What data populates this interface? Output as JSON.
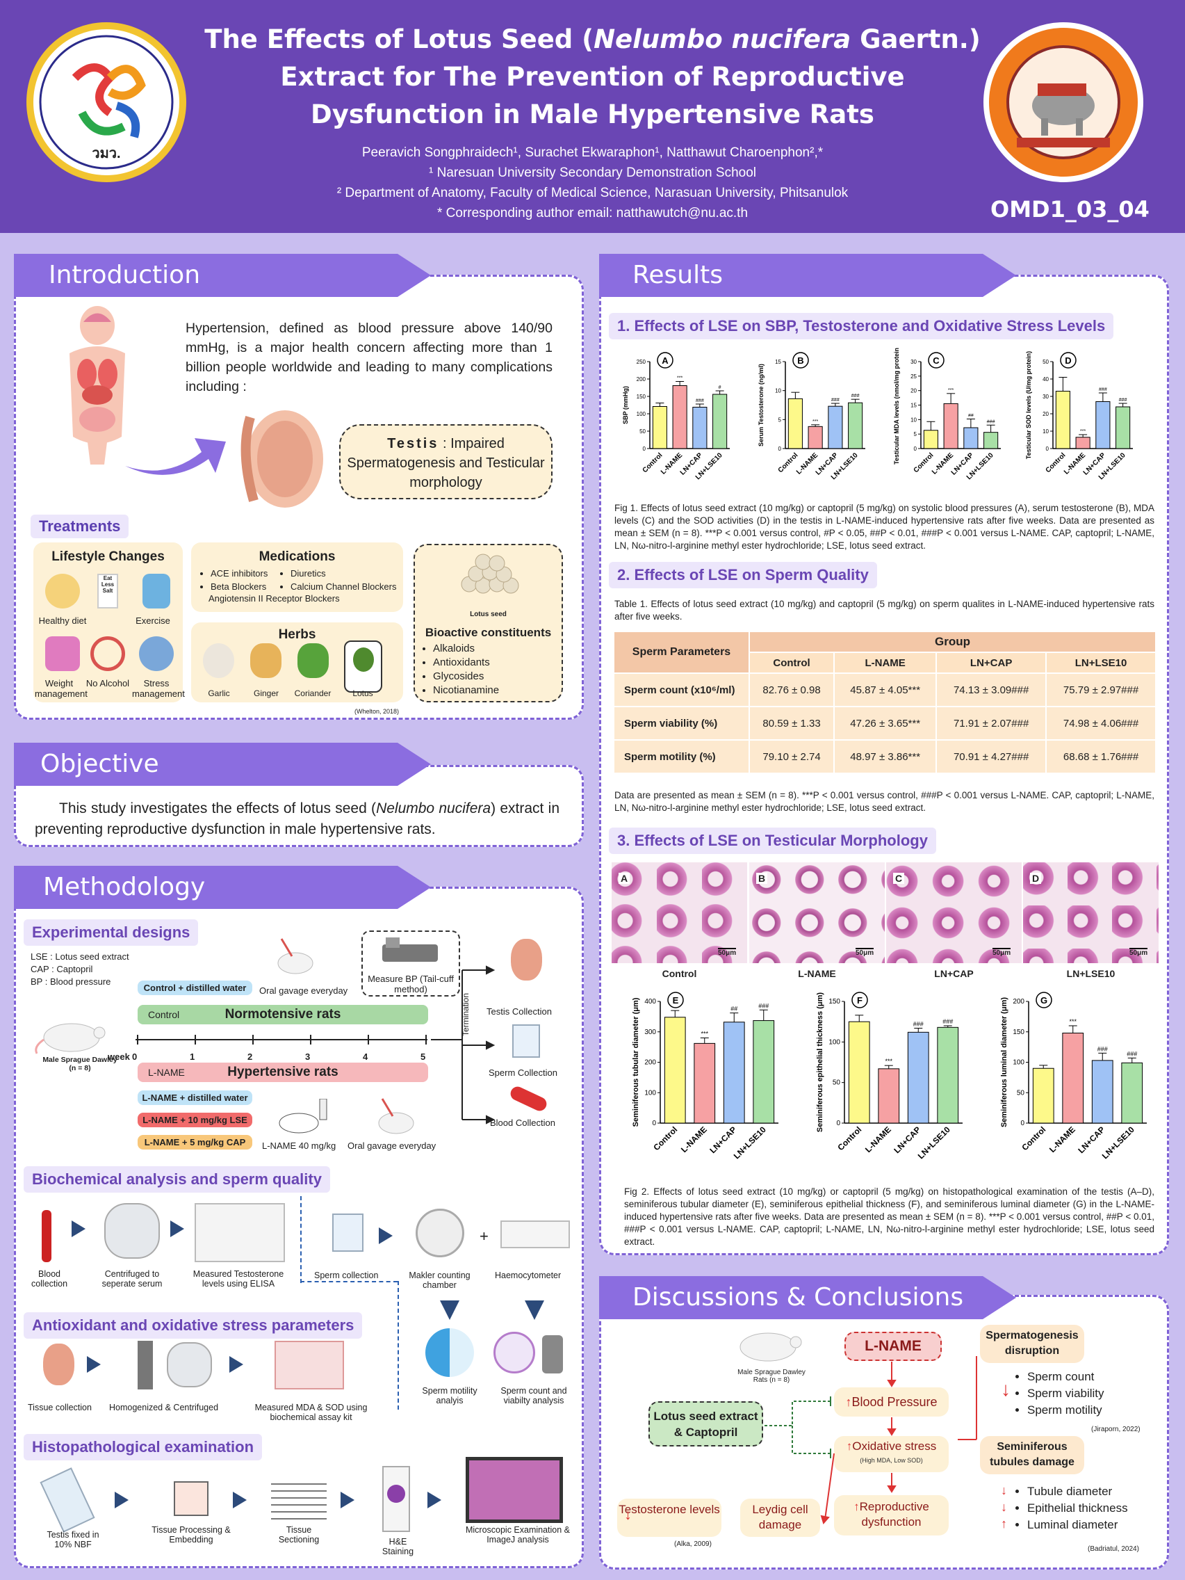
{
  "header": {
    "title_part1": "The Effects of Lotus Seed (",
    "title_italic": "Nelumbo nucifera",
    "title_part2": " Gaertn.)",
    "title_line2": "Extract for The Prevention of Reproductive",
    "title_line3": "Dysfunction in Male Hypertensive Rats",
    "authors": "Peeravich Songphraidech¹, Surachet Ekwaraphon¹, Natthawut Charoenphon²,*",
    "aff1": "¹ Naresuan University Secondary Demonstration School",
    "aff2": "² Department of Anatomy, Faculty of Medical Science, Narasuan University, Phitsanulok",
    "email": "* Corresponding author email: natthawutch@nu.ac.th",
    "code": "OMD1_03_04",
    "left_logo_text": "วมว."
  },
  "intro": {
    "heading": "Introduction",
    "text": "Hypertension, defined as blood pressure above 140/90 mmHg, is a major health concern affecting more than 1 billion people worldwide and leading to many complications including :",
    "testis_bold": "Testis",
    "testis_rest": " : Impaired Spermatogenesis and Testicular morphology",
    "treatments": "Treatments",
    "lifestyle": "Lifestyle Changes",
    "ls_items": [
      "Healthy diet",
      "Exercise",
      "Weight management",
      "No Alcohol",
      "Stress management"
    ],
    "eat_less_salt": "Eat Less Salt",
    "medications": "Medications",
    "med_items": [
      "ACE inhibitors",
      "Diuretics",
      "Beta Blockers",
      "Calcium Channel Blockers",
      "Angiotensin II Receptor Blockers"
    ],
    "herbs": "Herbs",
    "herb_items": [
      "Garlic",
      "Ginger",
      "Coriander",
      "Lotus"
    ],
    "citation": "(Whelton, 2018)",
    "lotus_seed": "Lotus seed",
    "bioactive": "Bioactive constituents",
    "bio_items": [
      "Alkaloids",
      "Antioxidants",
      "Glycosides",
      "Nicotianamine"
    ]
  },
  "objective": {
    "heading": "Objective",
    "text1": "This study investigates the effects of lotus seed (",
    "italic": "Nelumbo nucifera",
    "text2": ") extract in preventing reproductive dysfunction in male hypertensive rats."
  },
  "methods": {
    "heading": "Methodology",
    "exp": "Experimental designs",
    "abbr": [
      "LSE : Lotus seed extract",
      "CAP : Captopril",
      "BP : Blood pressure"
    ],
    "ctrl_water": "Control + distilled water",
    "oral1": "Oral gavage everyday",
    "measure_bp": "Measure BP (Tail-cuff method)",
    "control": "Control",
    "normo": "Normotensive rats",
    "rat": "Male Sprague Dawley (n = 8)",
    "week": "week",
    "weeks": [
      "0",
      "1",
      "2",
      "3",
      "4",
      "5"
    ],
    "lname": "L-NAME",
    "hyper": "Hypertensive rats",
    "groups": [
      "L-NAME + distilled water",
      "L-NAME + 10 mg/kg LSE",
      "L-NAME + 5 mg/kg CAP"
    ],
    "lname40": "L-NAME 40 mg/kg",
    "oral2": "Oral gavage everyday",
    "termination": "Termination",
    "collect": [
      "Testis Collection",
      "Sperm Collection",
      "Blood Collection"
    ],
    "bio": "Biochemical analysis and sperm quality",
    "bio_steps": [
      "Blood collection",
      "Centrifuged to seperate serum",
      "Measured Testosterone levels using ELISA"
    ],
    "sperm_steps": [
      "Sperm collection",
      "Makler counting chamber",
      "Haemocytometer",
      "Sperm motility analyis",
      "Sperm count and viabilty analysis"
    ],
    "anti": "Antioxidant and oxidative stress parameters",
    "anti_steps": [
      "Tissue collection",
      "Homogenized & Centrifuged",
      "Measured MDA & SOD using biochemical assay kit"
    ],
    "histo": "Histopathological examination",
    "histo_steps": [
      "Testis fixed in 10% NBF",
      "Tissue Processing & Embedding",
      "Tissue Sectioning",
      "H&E Staining",
      "Microscopic Examination & ImageJ analysis"
    ]
  },
  "results": {
    "heading": "Results",
    "s1": "1. Effects of LSE on SBP, Testosterone and Oxidative Stress Levels",
    "s2": "2. Effects of LSE on Sperm Quality",
    "s3": "3. Effects of LSE on Testicular Morphology",
    "fig1": "Fig 1. Effects of lotus seed extract (10 mg/kg) or captopril (5 mg/kg) on systolic blood pressures (A), serum testosterone (B), MDA levels (C) and the SOD activities (D) in the testis in L-NAME-induced hypertensive rats after five weeks. Data are presented as mean ± SEM (n = 8). ***P < 0.001 versus control, #P < 0.05, ##P < 0.01, ###P < 0.001 versus L-NAME. CAP, captopril; L-NAME, LN, Nω-nitro-l-arginine methyl ester hydrochloride; LSE, lotus seed extract.",
    "table_caption": "Table 1. Effects of lotus seed extract (10 mg/kg) and captopril (5 mg/kg) on sperm qualites in L-NAME-induced hypertensive rats after five weeks.",
    "table_headers": [
      "Sperm Parameters",
      "Group",
      "Control",
      "L-NAME",
      "LN+CAP",
      "LN+LSE10"
    ],
    "table_rows": [
      [
        "Sperm count (x10⁶/ml)",
        "82.76 ± 0.98",
        "45.87 ± 4.05***",
        "74.13 ± 3.09###",
        "75.79 ± 2.97###"
      ],
      [
        "Sperm viability (%)",
        "80.59 ± 1.33",
        "47.26 ± 3.65***",
        "71.91 ± 2.07###",
        "74.98 ± 4.06###"
      ],
      [
        "Sperm motility (%)",
        "79.10 ± 2.74",
        "48.97 ± 3.86***",
        "70.91 ± 4.27###",
        "68.68 ± 1.76###"
      ]
    ],
    "table_note": "Data are presented as mean ± SEM (n = 8). ***P < 0.001 versus control, ###P < 0.001 versus L-NAME. CAP, captopril; L-NAME, LN, Nω-nitro-l-arginine methyl ester hydrochloride; LSE, lotus seed extract.",
    "histo_labels": [
      "A",
      "B",
      "C",
      "D"
    ],
    "histo_groups": [
      "Control",
      "L-NAME",
      "LN+CAP",
      "LN+LSE10"
    ],
    "scale": "50μm",
    "fig2": "Fig 2. Effects of lotus seed extract (10 mg/kg) or captopril (5 mg/kg) on histopathological examination of the testis (A–D), seminiferous tubular diameter (E), seminiferous epithelial thickness (F), and seminiferous luminal diameter (G) in the L-NAME-induced hypertensive rats after five weeks. Data are presented as mean ± SEM (n = 8). ***P < 0.001 versus control, ##P < 0.01, ###P < 0.001 versus L-NAME. CAP, captopril; L-NAME, LN, Nω-nitro-l-arginine methyl ester hydrochloride; LSE, lotus seed extract."
  },
  "chart_data": [
    {
      "type": "bar",
      "label": "A",
      "categories": [
        "Control",
        "L-NAME",
        "LN+CAP",
        "LN+LSE10"
      ],
      "values": [
        121,
        181,
        119,
        156
      ],
      "errors": [
        10,
        12,
        9,
        10
      ],
      "ylabel": "SBP (mmHg)",
      "ylim": [
        0,
        250
      ],
      "yticks": [
        0,
        50,
        100,
        150,
        200,
        250
      ],
      "sig": [
        "",
        "***",
        "###",
        "#"
      ]
    },
    {
      "type": "bar",
      "label": "B",
      "categories": [
        "Control",
        "L-NAME",
        "LN+CAP",
        "LN+LSE10"
      ],
      "values": [
        8.6,
        3.8,
        7.3,
        7.9
      ],
      "errors": [
        1.1,
        0.3,
        0.5,
        0.6
      ],
      "ylabel": "Serum Testosterone (ng/ml)",
      "ylim": [
        0,
        15
      ],
      "yticks": [
        0,
        5,
        10,
        15
      ],
      "sig": [
        "",
        "***",
        "###",
        "###"
      ]
    },
    {
      "type": "bar",
      "label": "C",
      "categories": [
        "Control",
        "L-NAME",
        "LN+CAP",
        "LN+LSE10"
      ],
      "values": [
        6.3,
        15.5,
        7.2,
        5.6
      ],
      "errors": [
        3,
        3.5,
        3,
        2.5
      ],
      "ylabel": "Testicular MDA levels (nmol/mg protein)",
      "ylim": [
        0,
        30
      ],
      "yticks": [
        0,
        5,
        10,
        15,
        20,
        25,
        30
      ],
      "sig": [
        "",
        "***",
        "##",
        "###"
      ]
    },
    {
      "type": "bar",
      "label": "D",
      "categories": [
        "Control",
        "L-NAME",
        "LN+CAP",
        "LN+LSE10"
      ],
      "values": [
        33,
        6.5,
        27,
        24
      ],
      "errors": [
        8,
        1.5,
        5,
        2
      ],
      "ylabel": "Testicular SOD levels (U/mg protein)",
      "ylim": [
        0,
        50
      ],
      "yticks": [
        0,
        10,
        20,
        30,
        40,
        50
      ],
      "sig": [
        "",
        "***",
        "###",
        "###"
      ]
    },
    {
      "type": "bar",
      "label": "E",
      "categories": [
        "Control",
        "L-NAME",
        "LN+CAP",
        "LN+LSE10"
      ],
      "values": [
        348,
        262,
        332,
        337
      ],
      "errors": [
        22,
        18,
        30,
        35
      ],
      "ylabel": "Seminiferous tubular diameter (μm)",
      "ylim": [
        0,
        400
      ],
      "yticks": [
        0,
        100,
        200,
        300,
        400
      ],
      "sig": [
        "",
        "***",
        "##",
        "###"
      ]
    },
    {
      "type": "bar",
      "label": "F",
      "categories": [
        "Control",
        "L-NAME",
        "LN+CAP",
        "LN+LSE10"
      ],
      "values": [
        125,
        67,
        112,
        118
      ],
      "errors": [
        8,
        4,
        5,
        2
      ],
      "ylabel": "Seminiferous epithelial thickness (μm)",
      "ylim": [
        0,
        150
      ],
      "yticks": [
        0,
        50,
        100,
        150
      ],
      "sig": [
        "",
        "***",
        "###",
        "###"
      ]
    },
    {
      "type": "bar",
      "label": "G",
      "categories": [
        "Control",
        "L-NAME",
        "LN+CAP",
        "LN+LSE10"
      ],
      "values": [
        90,
        148,
        103,
        99
      ],
      "errors": [
        5,
        12,
        12,
        8
      ],
      "ylabel": "Seminiferous luminal diameter (μm)",
      "ylim": [
        0,
        200
      ],
      "yticks": [
        0,
        50,
        100,
        150,
        200
      ],
      "sig": [
        "",
        "***",
        "###",
        "###"
      ]
    }
  ],
  "colors": [
    "#fdf98a",
    "#f6a1a3",
    "#9fc2f5",
    "#a8e0a6"
  ],
  "discussion": {
    "heading": "Discussions & Conclusions",
    "rat": "Male Sprague Dawley Rats (n = 8)",
    "lname": "L-NAME",
    "lse": "Lotus seed extract & Captopril",
    "bp": "Blood Pressure",
    "ox": "Oxidative stress",
    "ox_sub": "(High MDA, Low SOD)",
    "repro": "Reproductive dysfunction",
    "leydig": "Leydig cell damage",
    "testo": "Testosterone levels",
    "alka": "(Alka, 2009)",
    "sperm_head": "Spermatogenesis disruption",
    "sperm_items": [
      "Sperm count",
      "Sperm viability",
      "Sperm motility"
    ],
    "jira": "(Jiraporn, 2022)",
    "semi_head": "Seminiferous tubules damage",
    "semi_items": [
      "Tubule diameter",
      "Epithelial thickness",
      "Luminal diameter"
    ],
    "badri": "(Badriatul, 2024)"
  }
}
